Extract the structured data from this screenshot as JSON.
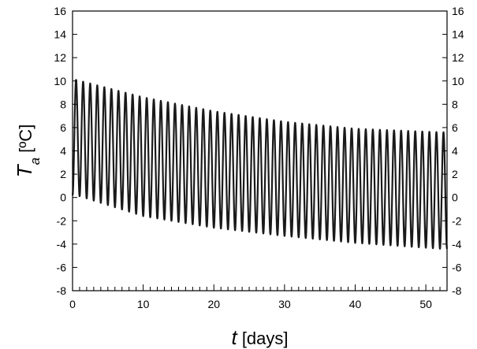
{
  "chart_data": {
    "type": "line",
    "xlabel": {
      "var": "t",
      "unit": "[days]"
    },
    "ylabel": {
      "var": "T",
      "sub": "a",
      "unit": "[ºC]"
    },
    "xlim": [
      0,
      53
    ],
    "ylim": [
      -8,
      16
    ],
    "xticks": [
      0,
      10,
      20,
      30,
      40,
      50
    ],
    "yticks": [
      -8,
      -6,
      -4,
      -2,
      0,
      2,
      4,
      6,
      8,
      10,
      12,
      14,
      16
    ],
    "x_minor_step": 1,
    "y_right_axis_mirrored": true,
    "grid": false,
    "legend": "none",
    "line_color": "#1a1a1a",
    "series": [
      {
        "period_days": 1.0,
        "x_start": 0,
        "x_end": 53,
        "envelope_max": {
          "x": [
            0.5,
            10,
            20,
            30,
            40,
            52
          ],
          "y": [
            10.1,
            8.6,
            7.4,
            6.5,
            5.9,
            5.6
          ]
        },
        "envelope_min": {
          "x": [
            0.5,
            10,
            20,
            30,
            40,
            52
          ],
          "y": [
            0.2,
            -1.6,
            -2.6,
            -3.3,
            -3.9,
            -4.4
          ]
        }
      }
    ]
  }
}
